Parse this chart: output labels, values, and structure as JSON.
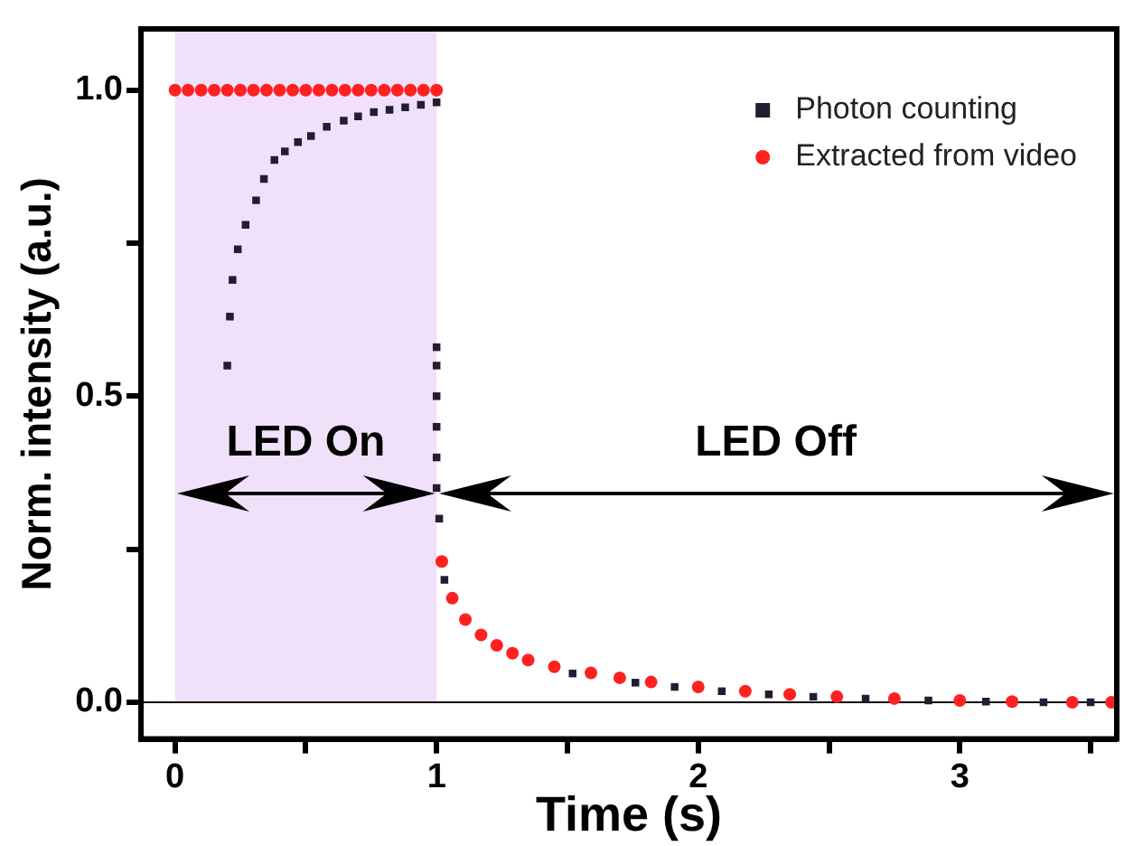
{
  "chart_data": {
    "type": "scatter",
    "xlabel": "Time (s)",
    "ylabel": "Norm. intensity (a.u.)",
    "xlim": [
      -0.13,
      3.6
    ],
    "ylim": [
      -0.06,
      1.1
    ],
    "xticks": [
      0,
      {
        "value": 0.5,
        "label": null
      },
      1,
      {
        "value": 1.5,
        "label": null
      },
      2,
      {
        "value": 2.5,
        "label": null
      },
      3,
      {
        "value": 3.5,
        "label": null
      }
    ],
    "yticks": [
      {
        "value": 0,
        "label": "0.0"
      },
      {
        "value": 0.25,
        "label": null
      },
      {
        "value": 0.5,
        "label": "0.5"
      },
      {
        "value": 0.75,
        "label": null
      },
      {
        "value": 1,
        "label": "1.0"
      }
    ],
    "legend": "top right",
    "grid": false,
    "ref_lines": [
      {
        "axis": "y",
        "value": 0,
        "color": "#000000"
      }
    ],
    "bands": [
      {
        "axis": "x",
        "from": 0,
        "to": 1,
        "color": "#f0e0fa"
      }
    ],
    "annotations": [
      "LED On",
      "LED Off"
    ],
    "series": [
      {
        "name": "Photon counting",
        "color": "#231c33",
        "marker": "square",
        "x": [
          0.2,
          0.21,
          0.22,
          0.24,
          0.27,
          0.31,
          0.34,
          0.38,
          0.42,
          0.47,
          0.52,
          0.58,
          0.645,
          0.7,
          0.76,
          0.82,
          0.88,
          0.94,
          1.0,
          1.0,
          1.0,
          1.0,
          1.0,
          1.0,
          1.0,
          1.01,
          1.03,
          1.52,
          1.76,
          1.91,
          2.09,
          2.27,
          2.44,
          2.64,
          2.88,
          3.1,
          3.32,
          3.5
        ],
        "values": [
          0.55,
          0.63,
          0.69,
          0.74,
          0.78,
          0.82,
          0.855,
          0.886,
          0.9,
          0.915,
          0.925,
          0.94,
          0.95,
          0.957,
          0.964,
          0.968,
          0.972,
          0.976,
          0.98,
          0.58,
          0.55,
          0.5,
          0.45,
          0.4,
          0.35,
          0.3,
          0.2,
          0.047,
          0.032,
          0.025,
          0.018,
          0.013,
          0.009,
          0.006,
          0.003,
          0.001,
          0.0,
          0.0
        ]
      },
      {
        "name": "Extracted from video",
        "color": "#ff2020",
        "marker": "circle",
        "x": [
          0,
          0.05,
          0.1,
          0.15,
          0.2,
          0.25,
          0.3,
          0.35,
          0.4,
          0.45,
          0.5,
          0.55,
          0.6,
          0.65,
          0.7,
          0.75,
          0.8,
          0.85,
          0.9,
          0.95,
          1.0,
          1.02,
          1.06,
          1.11,
          1.17,
          1.23,
          1.29,
          1.35,
          1.45,
          1.59,
          1.7,
          1.82,
          2.0,
          2.18,
          2.35,
          2.53,
          2.75,
          3.0,
          3.2,
          3.43,
          3.58
        ],
        "values": [
          1,
          1,
          1,
          1,
          1,
          1,
          1,
          1,
          1,
          1,
          1,
          1,
          1,
          1,
          1,
          1,
          1,
          1,
          1,
          1,
          1,
          0.23,
          0.17,
          0.135,
          0.11,
          0.093,
          0.08,
          0.069,
          0.058,
          0.048,
          0.04,
          0.033,
          0.025,
          0.018,
          0.013,
          0.009,
          0.006,
          0.003,
          0.001,
          0.0,
          0.0
        ]
      }
    ]
  }
}
